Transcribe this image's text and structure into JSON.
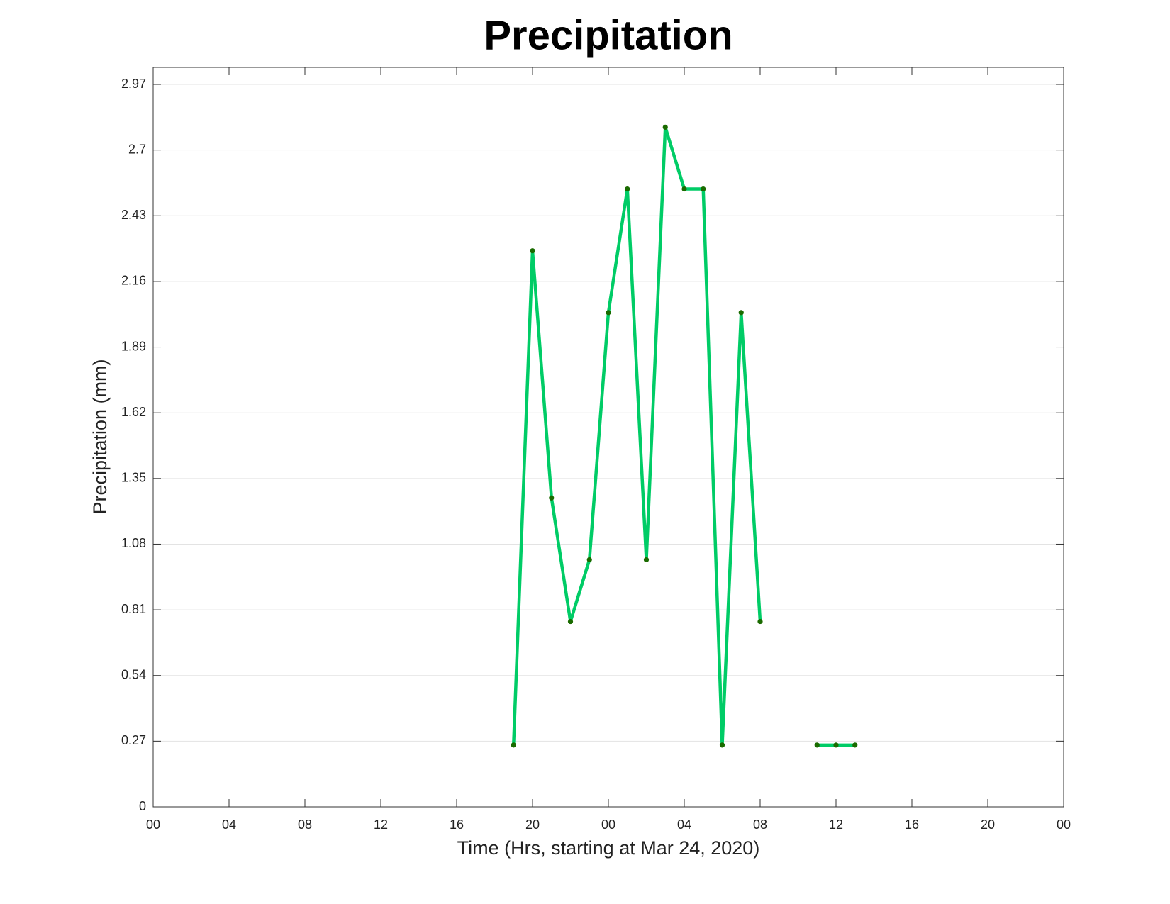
{
  "chart_data": {
    "type": "line",
    "title": "Precipitation",
    "xlabel": "Time (Hrs, starting at Mar 24, 2020)",
    "ylabel": "Precipitation (mm)",
    "x": [
      19,
      20,
      21,
      22,
      23,
      24,
      25,
      26,
      27,
      28,
      29,
      30,
      31,
      32,
      33,
      34,
      35,
      36,
      37
    ],
    "series": [
      {
        "name": "Precipitation",
        "color": "#00cc66",
        "marker_color": "#1a6b00",
        "values": [
          0.254,
          2.286,
          1.27,
          0.762,
          1.016,
          2.032,
          2.54,
          1.016,
          2.794,
          2.54,
          2.54,
          0.254,
          2.032,
          0.762,
          null,
          null,
          0.254,
          0.254,
          0.254
        ]
      }
    ],
    "xlim": [
      0,
      48
    ],
    "xticks": [
      {
        "value": 0,
        "label": "00"
      },
      {
        "value": 4,
        "label": "04"
      },
      {
        "value": 8,
        "label": "08"
      },
      {
        "value": 12,
        "label": "12"
      },
      {
        "value": 16,
        "label": "16"
      },
      {
        "value": 20,
        "label": "20"
      },
      {
        "value": 24,
        "label": "00"
      },
      {
        "value": 28,
        "label": "04"
      },
      {
        "value": 32,
        "label": "08"
      },
      {
        "value": 36,
        "label": "12"
      },
      {
        "value": 40,
        "label": "16"
      },
      {
        "value": 44,
        "label": "20"
      },
      {
        "value": 48,
        "label": "00"
      }
    ],
    "ylim": [
      0,
      3.04
    ],
    "yticks": [
      0,
      0.27,
      0.54,
      0.81,
      1.08,
      1.35,
      1.62,
      1.89,
      2.16,
      2.43,
      2.7,
      2.97
    ],
    "grid": "y"
  }
}
